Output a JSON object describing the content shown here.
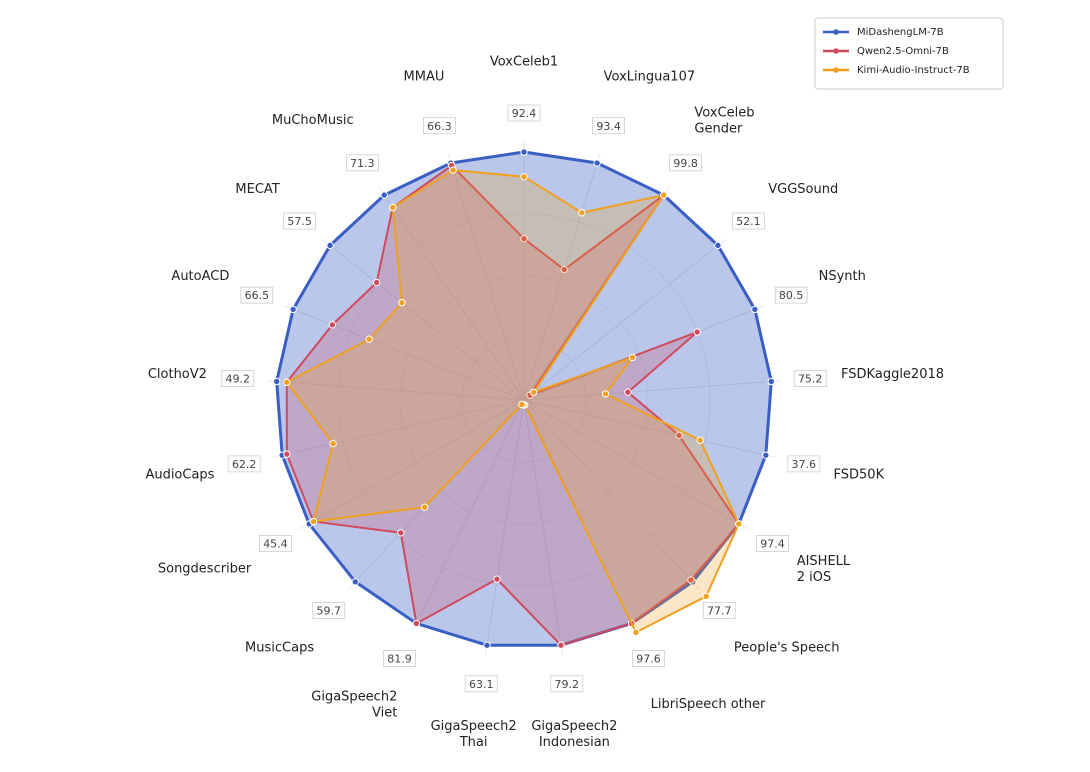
{
  "chart_data": {
    "type": "radar",
    "categories": [
      "VoxCeleb1",
      "VoxLingua107",
      "VoxCeleb\nGender",
      "VGGSound",
      "NSynth",
      "FSDKaggle2018",
      "FSD50K",
      "AISHELL\n2 iOS",
      "People's Speech",
      "LibriSpeech other",
      "GigaSpeech2\nIndonesian",
      "GigaSpeech2\nThai",
      "GigaSpeech2\nViet",
      "MusicCaps",
      "Songdescriber",
      "AudioCaps",
      "ClothoV2",
      "AutoACD",
      "MECAT",
      "MuChoMusic",
      "MMAU"
    ],
    "series": [
      {
        "name": "MiDashengLM-7B",
        "color": "#3a5fc4",
        "values": [
          92.4,
          93.4,
          99.8,
          52.1,
          80.5,
          75.2,
          37.6,
          97.4,
          77.7,
          97.6,
          79.2,
          63.1,
          81.9,
          59.7,
          45.4,
          62.2,
          49.2,
          66.5,
          57.5,
          71.3,
          66.3
        ]
      },
      {
        "name": "Qwen2.5-Omni-7B",
        "color": "#d04a5e",
        "values": [
          60.1,
          51.4,
          99.8,
          1.6,
          60.4,
          31.6,
          24.1,
          97.4,
          76.9,
          97.6,
          79.2,
          46.1,
          81.9,
          43.6,
          44.5,
          61.0,
          47.2,
          55.2,
          43.7,
          67.0,
          65.6
        ]
      },
      {
        "name": "Kimi-Audio-Instruct-7B",
        "color": "#f0a020",
        "values": [
          83.2,
          73.8,
          99.8,
          2.6,
          37.8,
          24.8,
          27.4,
          97.4,
          83.9,
          101.5,
          1.6,
          1.3,
          1.6,
          35.2,
          44.5,
          49.1,
          47.2,
          44.6,
          36.2,
          67.0,
          64.3
        ]
      }
    ],
    "legend": "upper right"
  }
}
